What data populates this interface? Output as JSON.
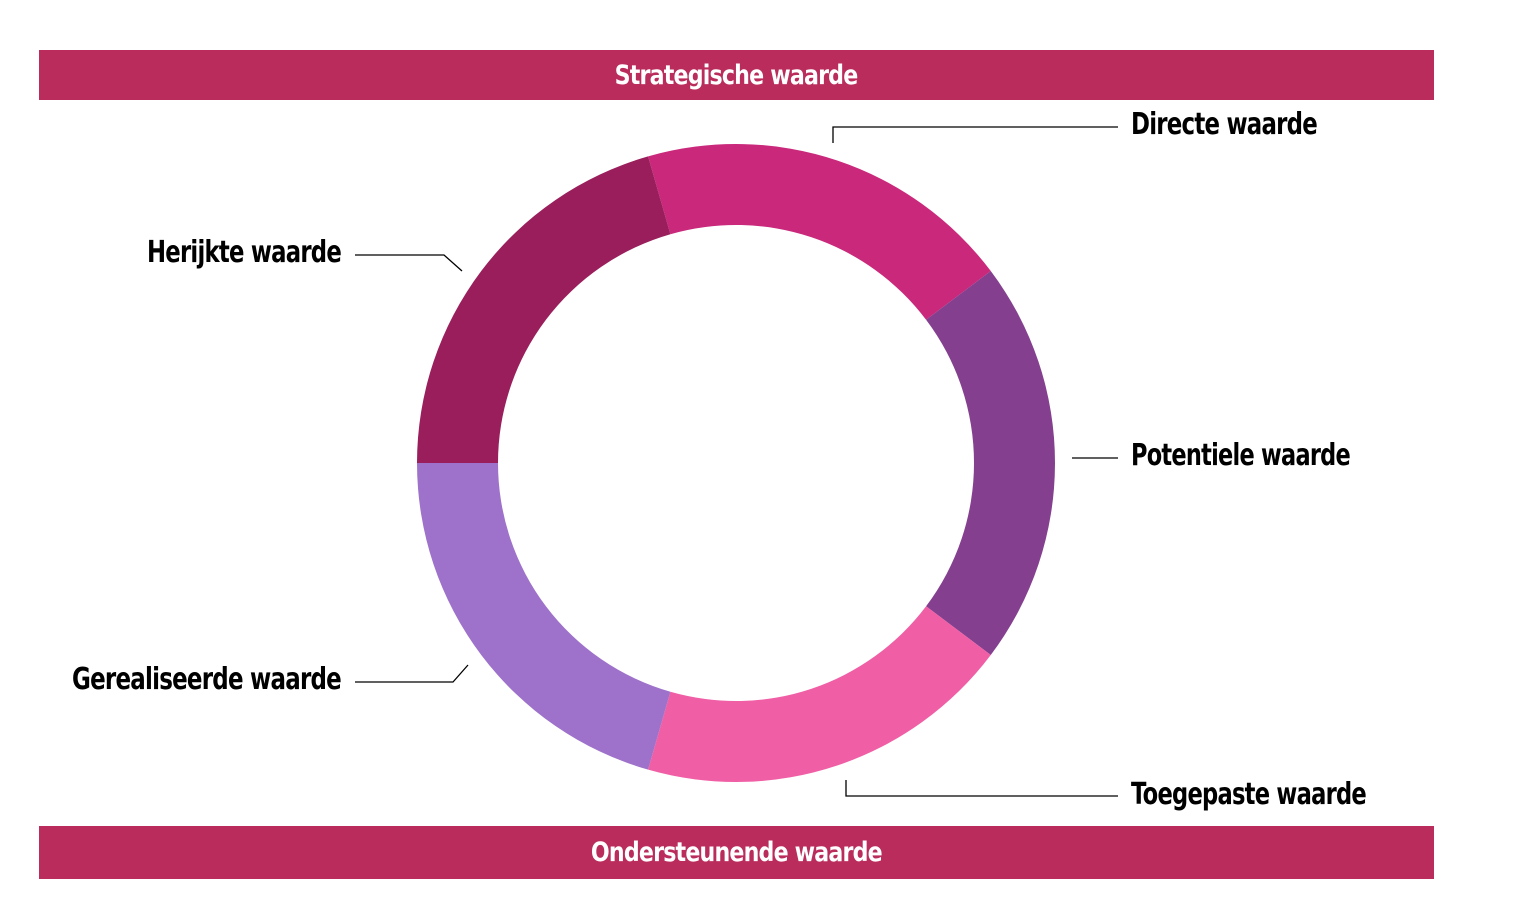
{
  "top_banner": {
    "label": "Strategische waarde",
    "color": "#b92c5b"
  },
  "bottom_banner": {
    "label": "Ondersteunende waarde",
    "color": "#b92c5b"
  },
  "ring": {
    "segments": [
      {
        "id": "directe",
        "label": "Directe waarde",
        "color": "#c9287b"
      },
      {
        "id": "potentiele",
        "label": "Potentiele waarde",
        "color": "#843f8f"
      },
      {
        "id": "toegepaste",
        "label": "Toegepaste waarde",
        "color": "#f05fa5"
      },
      {
        "id": "gerealiseerde",
        "label": "Gerealiseerde waarde",
        "color": "#9e71ca"
      },
      {
        "id": "herijkte",
        "label": "Herijkte waarde",
        "color": "#991e5b"
      }
    ]
  }
}
